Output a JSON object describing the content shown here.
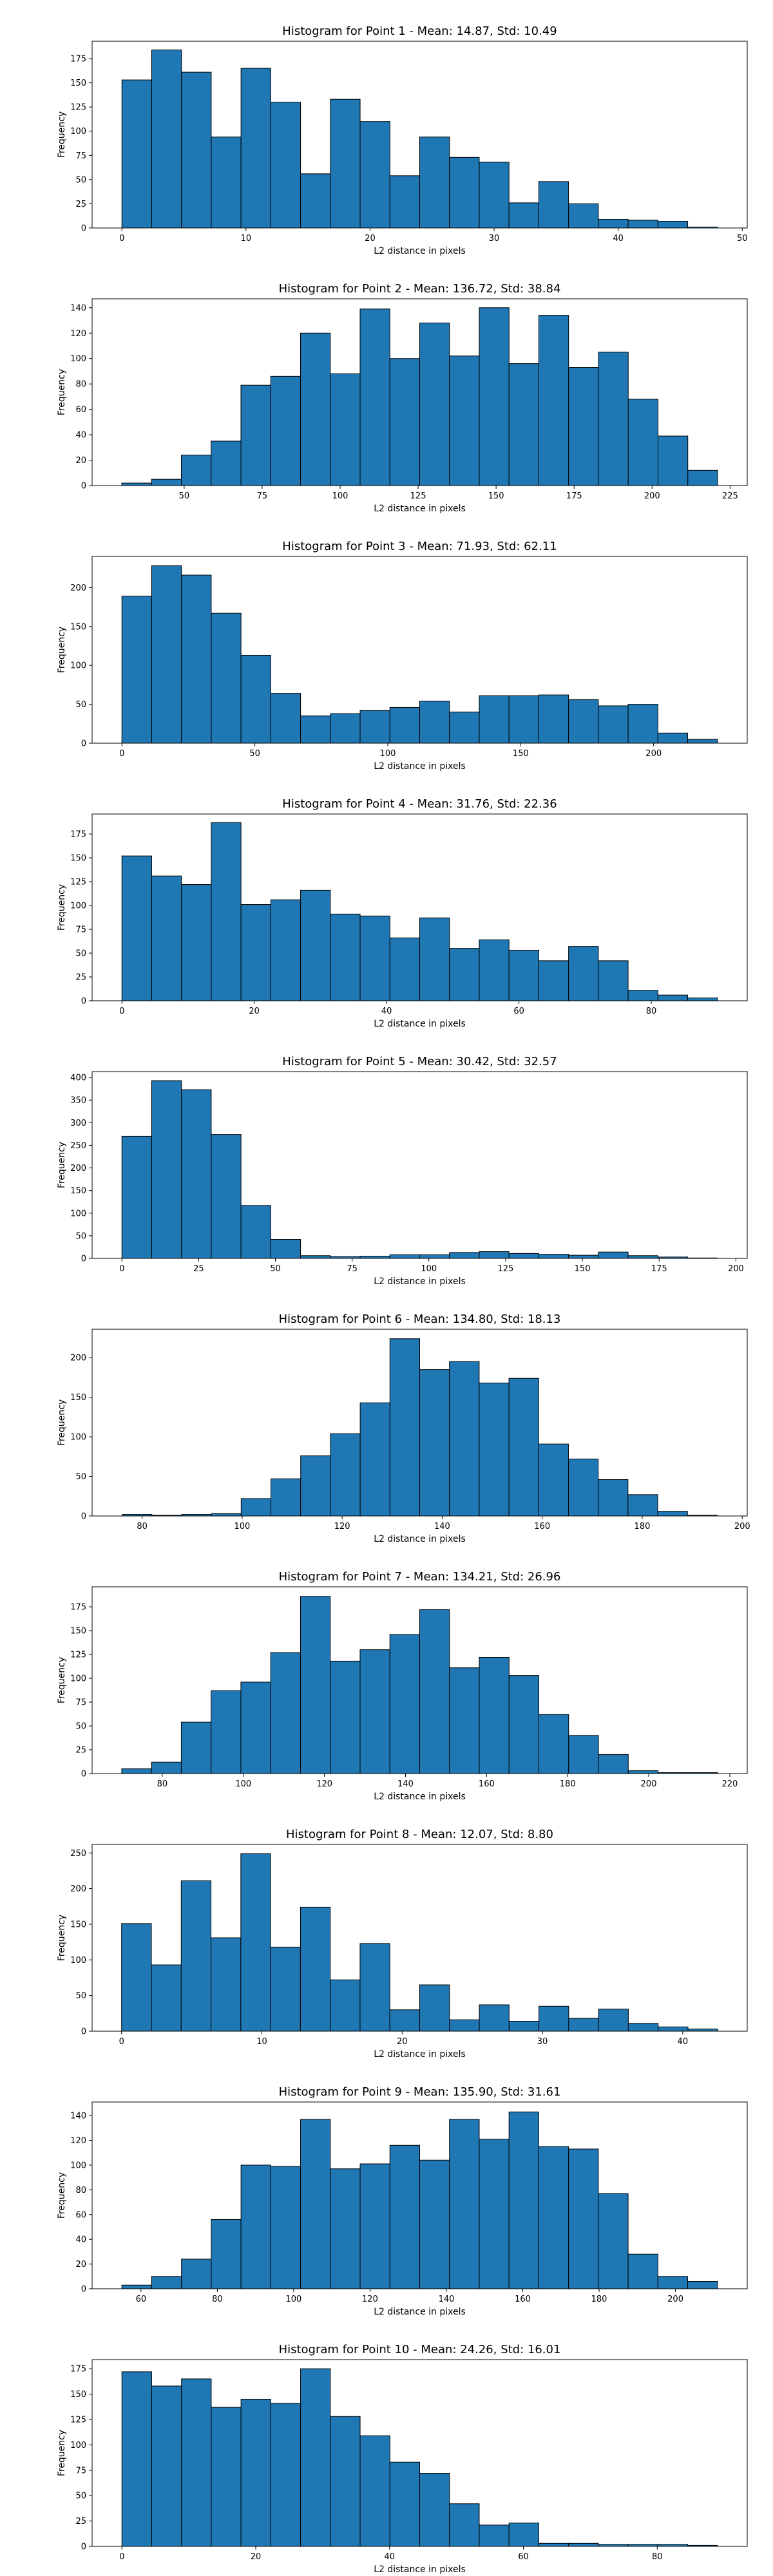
{
  "style": {
    "bar_color": "#1f77b4",
    "edge_color": "#000000"
  },
  "chart_data": [
    {
      "type": "bar",
      "title": "Histogram for Point 1 - Mean: 14.87, Std: 10.49",
      "xlabel": "L2 distance in pixels",
      "ylabel": "Frequency",
      "bin_start": 0,
      "bin_end": 48,
      "values": [
        153,
        184,
        161,
        94,
        165,
        130,
        56,
        133,
        110,
        54,
        94,
        73,
        68,
        26,
        48,
        25,
        9,
        8,
        7,
        1
      ],
      "xlim": [
        -2.4,
        50.4
      ],
      "ylim": [
        0,
        193
      ],
      "xticks": [
        0,
        10,
        20,
        30,
        40,
        50
      ],
      "yticks": [
        0,
        25,
        50,
        75,
        100,
        125,
        150,
        175
      ]
    },
    {
      "type": "bar",
      "title": "Histogram for Point 2 - Mean: 136.72, Std: 38.84",
      "xlabel": "L2 distance in pixels",
      "ylabel": "Frequency",
      "bin_start": 30,
      "bin_end": 221,
      "values": [
        2,
        5,
        24,
        35,
        79,
        86,
        120,
        88,
        139,
        100,
        128,
        102,
        140,
        96,
        134,
        93,
        105,
        68,
        39,
        12
      ],
      "xlim": [
        20.5,
        230.5
      ],
      "ylim": [
        0,
        147
      ],
      "xticks": [
        50,
        75,
        100,
        125,
        150,
        175,
        200,
        225
      ],
      "yticks": [
        0,
        20,
        40,
        60,
        80,
        100,
        120,
        140
      ]
    },
    {
      "type": "bar",
      "title": "Histogram for Point 3 - Mean: 71.93, Std: 62.11",
      "xlabel": "L2 distance in pixels",
      "ylabel": "Frequency",
      "bin_start": 0,
      "bin_end": 224,
      "values": [
        189,
        228,
        216,
        167,
        113,
        64,
        35,
        38,
        42,
        46,
        54,
        40,
        61,
        61,
        62,
        56,
        48,
        50,
        13,
        5
      ],
      "xlim": [
        -11.2,
        235.2
      ],
      "ylim": [
        0,
        240
      ],
      "xticks": [
        0,
        50,
        100,
        150,
        200
      ],
      "yticks": [
        0,
        50,
        100,
        150,
        200
      ]
    },
    {
      "type": "bar",
      "title": "Histogram for Point 4 - Mean: 31.76, Std: 22.36",
      "xlabel": "L2 distance in pixels",
      "ylabel": "Frequency",
      "bin_start": 0,
      "bin_end": 90,
      "values": [
        152,
        131,
        122,
        187,
        101,
        106,
        116,
        91,
        89,
        66,
        87,
        55,
        64,
        53,
        42,
        57,
        42,
        11,
        6,
        3
      ],
      "xlim": [
        -4.5,
        94.5
      ],
      "ylim": [
        0,
        196
      ],
      "xticks": [
        0,
        20,
        40,
        60,
        80
      ],
      "yticks": [
        0,
        25,
        50,
        75,
        100,
        125,
        150,
        175
      ]
    },
    {
      "type": "bar",
      "title": "Histogram for Point 5 - Mean: 30.42, Std: 32.57",
      "xlabel": "L2 distance in pixels",
      "ylabel": "Frequency",
      "bin_start": 0,
      "bin_end": 194,
      "values": [
        270,
        393,
        373,
        274,
        117,
        42,
        6,
        4,
        5,
        8,
        8,
        13,
        15,
        11,
        9,
        7,
        14,
        6,
        3,
        1
      ],
      "xlim": [
        -9.7,
        203.7
      ],
      "ylim": [
        0,
        413
      ],
      "xticks": [
        0,
        25,
        50,
        75,
        100,
        125,
        150,
        175,
        200
      ],
      "yticks": [
        0,
        50,
        100,
        150,
        200,
        250,
        300,
        350,
        400
      ]
    },
    {
      "type": "bar",
      "title": "Histogram for Point 6 - Mean: 134.80, Std: 18.13",
      "xlabel": "L2 distance in pixels",
      "ylabel": "Frequency",
      "bin_start": 76,
      "bin_end": 195,
      "values": [
        2,
        1,
        2,
        3,
        22,
        47,
        76,
        104,
        143,
        224,
        185,
        195,
        168,
        174,
        91,
        72,
        46,
        27,
        6,
        1
      ],
      "xlim": [
        70,
        201
      ],
      "ylim": [
        0,
        236
      ],
      "xticks": [
        80,
        100,
        120,
        140,
        160,
        180,
        200
      ],
      "yticks": [
        0,
        50,
        100,
        150,
        200
      ]
    },
    {
      "type": "bar",
      "title": "Histogram for Point 7 - Mean: 134.21, Std: 26.96",
      "xlabel": "L2 distance in pixels",
      "ylabel": "Frequency",
      "bin_start": 70,
      "bin_end": 217,
      "values": [
        5,
        12,
        54,
        87,
        96,
        127,
        186,
        118,
        130,
        146,
        172,
        111,
        122,
        103,
        62,
        40,
        20,
        3,
        1,
        1
      ],
      "xlim": [
        62.7,
        224.3
      ],
      "ylim": [
        0,
        196
      ],
      "xticks": [
        80,
        100,
        120,
        140,
        160,
        180,
        200,
        220
      ],
      "yticks": [
        0,
        25,
        50,
        75,
        100,
        125,
        150,
        175
      ]
    },
    {
      "type": "bar",
      "title": "Histogram for Point 8 - Mean: 12.07, Std: 8.80",
      "xlabel": "L2 distance in pixels",
      "ylabel": "Frequency",
      "bin_start": 0,
      "bin_end": 42.5,
      "values": [
        151,
        93,
        211,
        131,
        249,
        118,
        174,
        72,
        123,
        30,
        65,
        16,
        37,
        14,
        35,
        18,
        31,
        11,
        6,
        3
      ],
      "xlim": [
        -2.1,
        44.6
      ],
      "ylim": [
        0,
        262
      ],
      "xticks": [
        0,
        10,
        20,
        30,
        40
      ],
      "yticks": [
        0,
        50,
        100,
        150,
        200,
        250
      ]
    },
    {
      "type": "bar",
      "title": "Histogram for Point 9 - Mean: 135.90, Std: 31.61",
      "xlabel": "L2 distance in pixels",
      "ylabel": "Frequency",
      "bin_start": 55,
      "bin_end": 211,
      "values": [
        3,
        10,
        24,
        56,
        100,
        99,
        137,
        97,
        101,
        116,
        104,
        137,
        121,
        143,
        115,
        113,
        77,
        28,
        10,
        6
      ],
      "xlim": [
        47.2,
        218.8
      ],
      "ylim": [
        0,
        151
      ],
      "xticks": [
        60,
        80,
        100,
        120,
        140,
        160,
        180,
        200
      ],
      "yticks": [
        0,
        20,
        40,
        60,
        80,
        100,
        120,
        140
      ]
    },
    {
      "type": "bar",
      "title": "Histogram for Point 10 - Mean: 24.26, Std: 16.01",
      "xlabel": "L2 distance in pixels",
      "ylabel": "Frequency",
      "bin_start": 0,
      "bin_end": 89,
      "values": [
        172,
        158,
        165,
        137,
        145,
        141,
        175,
        128,
        109,
        83,
        72,
        42,
        21,
        23,
        3,
        3,
        2,
        2,
        2,
        1
      ],
      "xlim": [
        -4.45,
        93.45
      ],
      "ylim": [
        0,
        184
      ],
      "xticks": [
        0,
        20,
        40,
        60,
        80
      ],
      "yticks": [
        0,
        25,
        50,
        75,
        100,
        125,
        150,
        175
      ]
    }
  ]
}
